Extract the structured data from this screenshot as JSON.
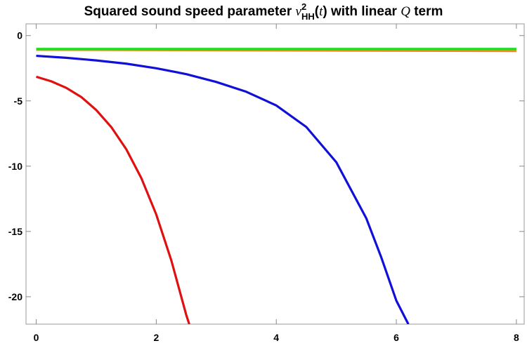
{
  "chart_data": {
    "type": "line",
    "title_parts": [
      "Squared sound speed parameter ",
      "v",
      "2",
      "HH",
      "(",
      "t",
      ")",
      " with linear ",
      "Q",
      " term"
    ],
    "xlim": [
      -0.17,
      8.13
    ],
    "ylim": [
      -22.1,
      0.9
    ],
    "xticks": [
      0,
      2,
      4,
      6,
      8
    ],
    "yticks": [
      0,
      -5,
      -10,
      -15,
      -20
    ],
    "series": [
      {
        "color": "#e01010",
        "x": [
          0,
          0.25,
          0.5,
          0.75,
          1,
          1.25,
          1.5,
          1.75,
          2,
          2.25,
          2.5,
          2.55
        ],
        "values": [
          -3.15,
          -3.5,
          -4.0,
          -4.7,
          -5.7,
          -7.0,
          -8.7,
          -10.9,
          -13.7,
          -17.2,
          -21.4,
          -22.1
        ]
      },
      {
        "color": "#1010d8",
        "x": [
          0,
          0.5,
          1,
          1.5,
          2,
          2.5,
          3,
          3.5,
          4,
          4.5,
          5,
          5.5,
          5.75,
          6,
          6.2
        ],
        "values": [
          -1.55,
          -1.7,
          -1.9,
          -2.15,
          -2.5,
          -2.95,
          -3.55,
          -4.3,
          -5.35,
          -7.0,
          -9.7,
          -14.0,
          -17.0,
          -20.3,
          -22.1
        ]
      },
      {
        "color": "#f08c18",
        "x": [
          0,
          8
        ],
        "values": [
          -1.08,
          -1.18
        ]
      },
      {
        "color": "#22dd22",
        "x": [
          0,
          8
        ],
        "values": [
          -1.02,
          -1.02
        ]
      }
    ]
  }
}
